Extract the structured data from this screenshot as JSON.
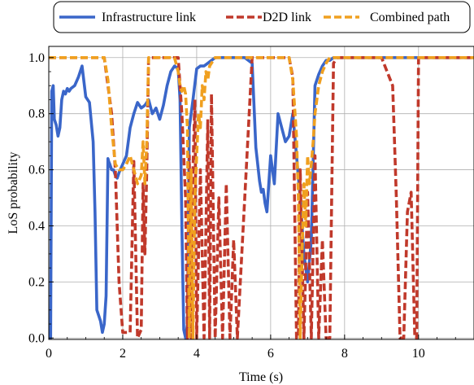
{
  "chart_data": {
    "type": "line",
    "title": "",
    "xlabel": "Time (s)",
    "ylabel": "LoS probability",
    "xlim": [
      0,
      11.5
    ],
    "ylim": [
      -0.005,
      1.04
    ],
    "xticks": [
      0,
      2,
      4,
      6,
      8,
      10
    ],
    "yticks": [
      0.0,
      0.2,
      0.4,
      0.6,
      0.8,
      1.0
    ],
    "xtick_labels": [
      "0",
      "2",
      "4",
      "6",
      "8",
      "10"
    ],
    "ytick_labels": [
      "0.0",
      "0.2",
      "0.4",
      "0.6",
      "0.8",
      "1.0"
    ],
    "grid": true,
    "legend_position": "top",
    "series": [
      {
        "name": "Infrastructure link",
        "color": "#3a66c9",
        "style": "solid",
        "x": [
          0.0,
          0.05,
          0.08,
          0.12,
          0.15,
          0.2,
          0.25,
          0.3,
          0.35,
          0.4,
          0.45,
          0.5,
          0.55,
          0.6,
          0.7,
          0.8,
          0.9,
          1.0,
          1.1,
          1.2,
          1.25,
          1.3,
          1.35,
          1.4,
          1.45,
          1.5,
          1.55,
          1.6,
          1.62,
          1.65,
          1.7,
          1.75,
          1.8,
          1.85,
          1.9,
          2.0,
          2.1,
          2.2,
          2.3,
          2.4,
          2.5,
          2.6,
          2.7,
          2.8,
          2.9,
          3.0,
          3.1,
          3.2,
          3.3,
          3.4,
          3.5,
          3.55,
          3.6,
          3.65,
          3.7,
          3.75,
          3.8,
          3.9,
          4.0,
          4.1,
          4.2,
          4.3,
          4.4,
          4.5,
          4.6,
          4.7,
          5.0,
          5.3,
          5.5,
          5.6,
          5.7,
          5.75,
          5.8,
          5.85,
          5.9,
          6.0,
          6.05,
          6.1,
          6.2,
          6.3,
          6.4,
          6.5,
          6.6,
          6.7,
          6.8,
          6.9,
          7.0,
          7.1,
          7.2,
          7.3,
          7.4,
          7.5,
          7.6,
          7.7,
          8.0,
          9.0,
          10.0,
          11.5
        ],
        "y": [
          0.0,
          0.0,
          0.88,
          0.9,
          0.78,
          0.76,
          0.72,
          0.75,
          0.85,
          0.88,
          0.87,
          0.89,
          0.88,
          0.89,
          0.9,
          0.93,
          0.97,
          0.86,
          0.84,
          0.7,
          0.45,
          0.1,
          0.08,
          0.06,
          0.02,
          0.05,
          0.15,
          0.64,
          0.63,
          0.62,
          0.6,
          0.6,
          0.58,
          0.57,
          0.59,
          0.62,
          0.65,
          0.75,
          0.8,
          0.84,
          0.82,
          0.83,
          0.85,
          0.8,
          0.82,
          0.78,
          0.83,
          0.9,
          0.95,
          0.97,
          0.96,
          0.85,
          0.4,
          0.03,
          0.0,
          0.05,
          0.75,
          0.85,
          0.96,
          0.97,
          0.97,
          0.98,
          0.99,
          1.0,
          1.0,
          1.0,
          1.0,
          1.0,
          0.98,
          0.68,
          0.56,
          0.52,
          0.53,
          0.48,
          0.45,
          0.65,
          0.6,
          0.55,
          0.8,
          0.75,
          0.7,
          0.72,
          0.8,
          0.65,
          0.5,
          0.3,
          0.2,
          0.35,
          0.9,
          0.94,
          0.97,
          0.99,
          0.99,
          1.0,
          1.0,
          1.0,
          1.0,
          1.0
        ]
      },
      {
        "name": "D2D link",
        "color": "#c0392b",
        "style": "dashed",
        "x": [
          0.0,
          1.5,
          1.6,
          1.7,
          1.8,
          1.9,
          2.0,
          2.1,
          2.2,
          2.3,
          2.4,
          2.5,
          2.55,
          2.6,
          2.65,
          2.7,
          2.8,
          3.0,
          3.5,
          3.6,
          3.7,
          3.75,
          3.8,
          3.85,
          3.9,
          3.95,
          4.0,
          4.1,
          4.2,
          4.3,
          4.35,
          4.4,
          4.5,
          4.6,
          4.7,
          4.8,
          4.9,
          5.0,
          5.1,
          5.5,
          6.0,
          6.5,
          6.6,
          6.7,
          6.75,
          6.8,
          6.9,
          7.0,
          7.1,
          7.2,
          7.3,
          7.4,
          7.5,
          7.6,
          7.7,
          7.8,
          7.9,
          8.0,
          8.5,
          9.0,
          9.3,
          9.4,
          9.5,
          9.6,
          9.7,
          9.8,
          9.9,
          9.95,
          10.0,
          10.05,
          10.5,
          11.5
        ],
        "y": [
          1.0,
          1.0,
          0.9,
          0.8,
          0.6,
          0.2,
          0.02,
          0.02,
          0.02,
          0.63,
          0.0,
          0.03,
          0.55,
          0.3,
          0.6,
          1.0,
          1.0,
          1.0,
          1.0,
          0.8,
          0.5,
          0.0,
          0.65,
          0.0,
          0.6,
          0.85,
          0.0,
          0.6,
          0.0,
          0.78,
          0.0,
          0.87,
          0.0,
          0.5,
          0.0,
          0.55,
          0.0,
          0.35,
          0.0,
          1.0,
          1.0,
          1.0,
          0.93,
          0.0,
          0.0,
          0.6,
          0.0,
          0.52,
          0.0,
          0.65,
          0.0,
          0.35,
          0.0,
          0.0,
          0.98,
          1.0,
          1.0,
          1.0,
          1.0,
          1.0,
          0.9,
          0.5,
          0.0,
          0.0,
          0.45,
          0.52,
          0.0,
          0.0,
          1.0,
          1.0,
          1.0,
          1.0
        ]
      },
      {
        "name": "Combined path",
        "color": "#f0a020",
        "style": "dashed",
        "x": [
          0.0,
          1.5,
          1.6,
          1.7,
          1.8,
          1.9,
          2.0,
          2.1,
          2.2,
          2.3,
          2.4,
          2.5,
          2.55,
          2.6,
          2.65,
          2.7,
          2.8,
          3.0,
          3.3,
          3.4,
          3.5,
          3.55,
          3.6,
          3.65,
          3.7,
          3.75,
          3.8,
          3.85,
          3.9,
          3.95,
          4.0,
          4.05,
          4.1,
          4.15,
          4.2,
          4.25,
          4.3,
          4.35,
          4.4,
          4.5,
          4.6,
          4.7,
          4.8,
          5.0,
          5.5,
          6.0,
          6.5,
          6.6,
          6.65,
          6.7,
          6.75,
          6.8,
          6.85,
          6.9,
          6.95,
          7.0,
          7.05,
          7.1,
          7.15,
          7.2,
          7.25,
          7.3,
          7.4,
          7.5,
          7.6,
          7.7,
          8.0,
          9.0,
          10.0,
          11.5
        ],
        "y": [
          1.0,
          1.0,
          0.92,
          0.75,
          0.62,
          0.6,
          0.6,
          0.62,
          0.65,
          0.6,
          0.55,
          0.58,
          0.7,
          0.55,
          0.7,
          1.0,
          1.0,
          1.0,
          1.0,
          1.0,
          0.95,
          0.9,
          0.88,
          0.9,
          0.87,
          0.75,
          0.0,
          0.6,
          0.0,
          0.5,
          0.65,
          0.8,
          0.75,
          0.9,
          0.85,
          0.95,
          0.92,
          0.97,
          0.98,
          1.0,
          1.0,
          1.0,
          1.0,
          1.0,
          1.0,
          1.0,
          1.0,
          0.92,
          0.82,
          0.72,
          0.5,
          0.0,
          0.3,
          0.55,
          0.4,
          0.65,
          0.55,
          0.62,
          0.7,
          0.8,
          0.85,
          0.9,
          0.95,
          0.98,
          1.0,
          1.0,
          1.0,
          1.0,
          1.0,
          1.0
        ]
      }
    ]
  }
}
